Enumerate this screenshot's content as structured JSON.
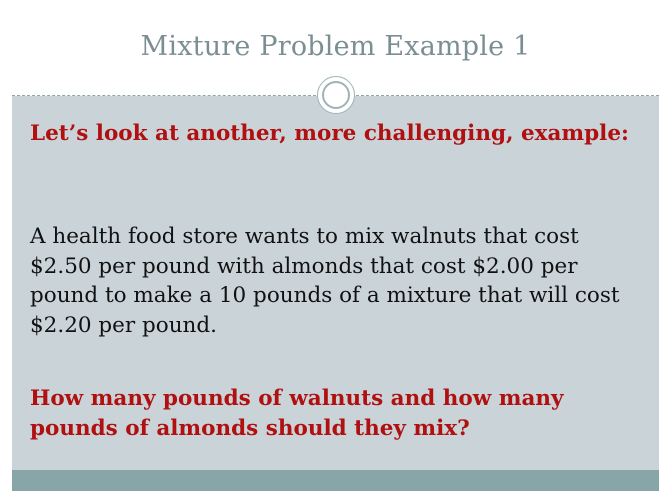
{
  "slide": {
    "title": "Mixture Problem Example 1",
    "intro": "Let’s look at another, more challenging, example:",
    "problem": "A health food store wants to mix walnuts that cost $2.50 per pound with almonds that cost $2.00 per pound to make a 10 pounds of a mixture that will cost $2.20 per pound.",
    "question": "How many pounds of walnuts and how many pounds of almonds should they mix?"
  },
  "colors": {
    "title": "#7b8f93",
    "content_background": "#c9d3d8",
    "accent_text": "#b01010",
    "body_text": "#111111",
    "bottom_band": "#88a5a7"
  }
}
